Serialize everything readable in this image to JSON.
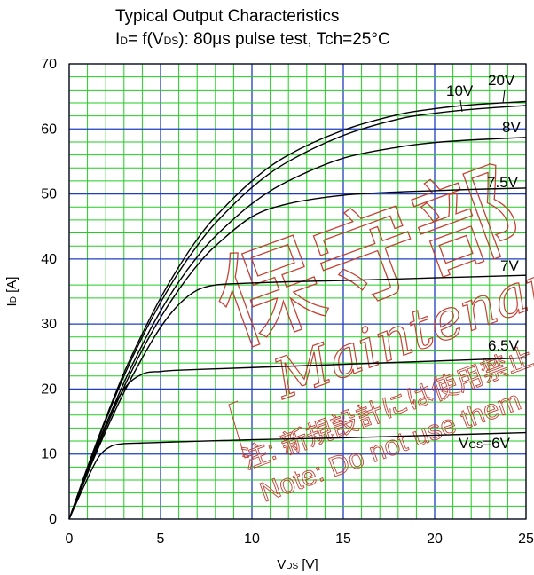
{
  "title": {
    "line1": "Typical Output Characteristics",
    "line2_prefix": "I",
    "line2_sub1": "D",
    "line2_mid": "= f(V",
    "line2_sub2": "DS",
    "line2_suffix": "): 80μs pulse test, Tch=25°C"
  },
  "watermark": {
    "kanji": "保守部",
    "word": "Maintenance",
    "note_jp": "注: 新規設計には使用禁止",
    "note_en": "Note: Do not use them"
  },
  "chart_data": {
    "type": "line",
    "xlabel_main": "V",
    "xlabel_sub": "DS",
    "xlabel_unit": " [V]",
    "ylabel_main": "I",
    "ylabel_sub": "D",
    "ylabel_unit": " [A]",
    "xlim": [
      0,
      25
    ],
    "ylim": [
      0,
      70
    ],
    "xticks": [
      0,
      5,
      10,
      15,
      20,
      25
    ],
    "yticks": [
      0,
      10,
      20,
      30,
      40,
      50,
      60,
      70
    ],
    "grid": true,
    "series": [
      {
        "name": "20V",
        "x": [
          0,
          1,
          2,
          3,
          4,
          5,
          6,
          7,
          8,
          10,
          12,
          15,
          18,
          20,
          22,
          25
        ],
        "y": [
          0,
          8,
          15.5,
          22.5,
          28.5,
          34,
          38.8,
          43,
          46.5,
          52,
          56,
          59.8,
          62.2,
          63.1,
          63.7,
          64.2
        ]
      },
      {
        "name": "10V",
        "x": [
          0,
          1,
          2,
          3,
          4,
          5,
          6,
          7,
          8,
          10,
          12,
          15,
          18,
          20,
          22,
          25
        ],
        "y": [
          0,
          7.8,
          15.2,
          22,
          28,
          33.3,
          38,
          42,
          45.5,
          51,
          55,
          59,
          61.5,
          62.4,
          63,
          63.6
        ]
      },
      {
        "name": "8V",
        "x": [
          0,
          1,
          2,
          3,
          4,
          5,
          6,
          7,
          8,
          10,
          12,
          15,
          18,
          20,
          22,
          25
        ],
        "y": [
          0,
          7.5,
          14.5,
          21,
          26.8,
          32,
          36.5,
          40.3,
          43.5,
          48.5,
          52,
          55.5,
          57.2,
          57.9,
          58.3,
          58.7
        ]
      },
      {
        "name": "7.5V",
        "x": [
          0,
          1,
          2,
          3,
          4,
          5,
          6,
          7,
          8,
          10,
          12,
          15,
          18,
          20,
          22,
          25
        ],
        "y": [
          0,
          7.2,
          14,
          20.3,
          26,
          31,
          35.3,
          39,
          42,
          46.5,
          48.5,
          49.8,
          50.3,
          50.5,
          50.7,
          50.9
        ]
      },
      {
        "name": "7V",
        "x": [
          0,
          1,
          2,
          3,
          4,
          5,
          6,
          7,
          8,
          9,
          10,
          12,
          15,
          20,
          25
        ],
        "y": [
          0,
          7,
          13.5,
          19.5,
          24.8,
          29.5,
          33,
          35.2,
          36,
          36.2,
          36.3,
          36.5,
          36.7,
          37.1,
          37.5
        ]
      },
      {
        "name": "6.5V",
        "x": [
          0,
          1,
          2,
          3,
          4,
          5,
          6,
          8,
          10,
          15,
          20,
          25
        ],
        "y": [
          0,
          7.5,
          14.5,
          20,
          22.3,
          22.7,
          22.9,
          23.1,
          23.3,
          23.8,
          24.3,
          24.8
        ]
      },
      {
        "name": "V_GS=6V",
        "x": [
          0,
          0.8,
          1.6,
          2.3,
          3,
          4,
          5,
          10,
          15,
          20,
          25
        ],
        "y": [
          0,
          5,
          9.5,
          11.2,
          11.6,
          11.7,
          11.8,
          12.2,
          12.5,
          12.9,
          13.3
        ]
      }
    ],
    "curve_labels": [
      {
        "text": "20V",
        "series": "20V"
      },
      {
        "text": "10V",
        "series": "10V"
      },
      {
        "text": "8V",
        "series": "8V"
      },
      {
        "text": "7.5V",
        "series": "7.5V"
      },
      {
        "text": "7V",
        "series": "7V"
      },
      {
        "text": "6.5V",
        "series": "6.5V"
      },
      {
        "text_main": "V",
        "text_sub": "GS",
        "text_suffix": "=6V",
        "series": "V_GS=6V"
      }
    ]
  },
  "colors": {
    "minor_grid": "#22cc22",
    "major_grid": "#1e3ebf",
    "curve": "#000000",
    "watermark": "#c0392b"
  }
}
